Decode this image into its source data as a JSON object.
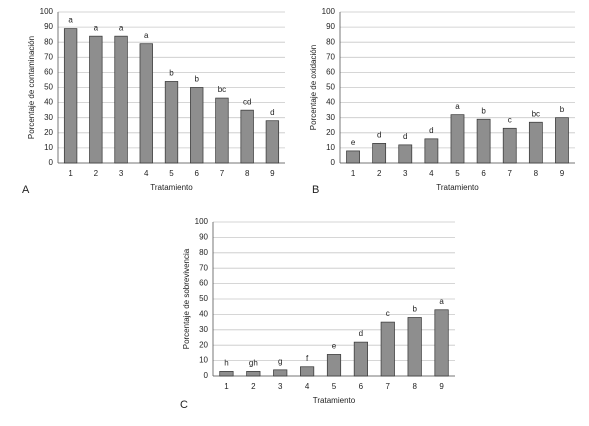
{
  "chart_data": [
    {
      "type": "bar",
      "panel": "A",
      "xlabel": "Tratamiento",
      "ylabel": "Porcentaje de contaminación",
      "categories": [
        "1",
        "2",
        "3",
        "4",
        "5",
        "6",
        "7",
        "8",
        "9"
      ],
      "values": [
        89,
        84,
        84,
        79,
        54,
        50,
        43,
        35,
        28
      ],
      "letters": [
        "a",
        "a",
        "a",
        "a",
        "b",
        "b",
        "bc",
        "cd",
        "d"
      ],
      "color": "#8e8e8e",
      "ylim": [
        0,
        100
      ],
      "yticks": [
        0,
        10,
        20,
        30,
        40,
        50,
        60,
        70,
        80,
        90,
        100
      ],
      "grid": true
    },
    {
      "type": "bar",
      "panel": "B",
      "xlabel": "Tratamiento",
      "ylabel": "Porcentaje de oxidación",
      "categories": [
        "1",
        "2",
        "3",
        "4",
        "5",
        "6",
        "7",
        "8",
        "9"
      ],
      "values": [
        8,
        13,
        12,
        16,
        32,
        29,
        23,
        27,
        30
      ],
      "letters": [
        "e",
        "d",
        "d",
        "d",
        "a",
        "b",
        "c",
        "bc",
        "b"
      ],
      "color": "#8e8e8e",
      "ylim": [
        0,
        100
      ],
      "yticks": [
        0,
        10,
        20,
        30,
        40,
        50,
        60,
        70,
        80,
        90,
        100
      ],
      "grid": true
    },
    {
      "type": "bar",
      "panel": "C",
      "xlabel": "Tratamiento",
      "ylabel": "Porcentaje de sobrevivencia",
      "categories": [
        "1",
        "2",
        "3",
        "4",
        "5",
        "6",
        "7",
        "8",
        "9"
      ],
      "values": [
        3,
        3,
        4,
        6,
        14,
        22,
        35,
        38,
        43
      ],
      "letters": [
        "h",
        "gh",
        "g",
        "f",
        "e",
        "d",
        "c",
        "b",
        "a"
      ],
      "color": "#8e8e8e",
      "ylim": [
        0,
        100
      ],
      "yticks": [
        0,
        10,
        20,
        30,
        40,
        50,
        60,
        70,
        80,
        90,
        100
      ],
      "grid": true
    }
  ]
}
